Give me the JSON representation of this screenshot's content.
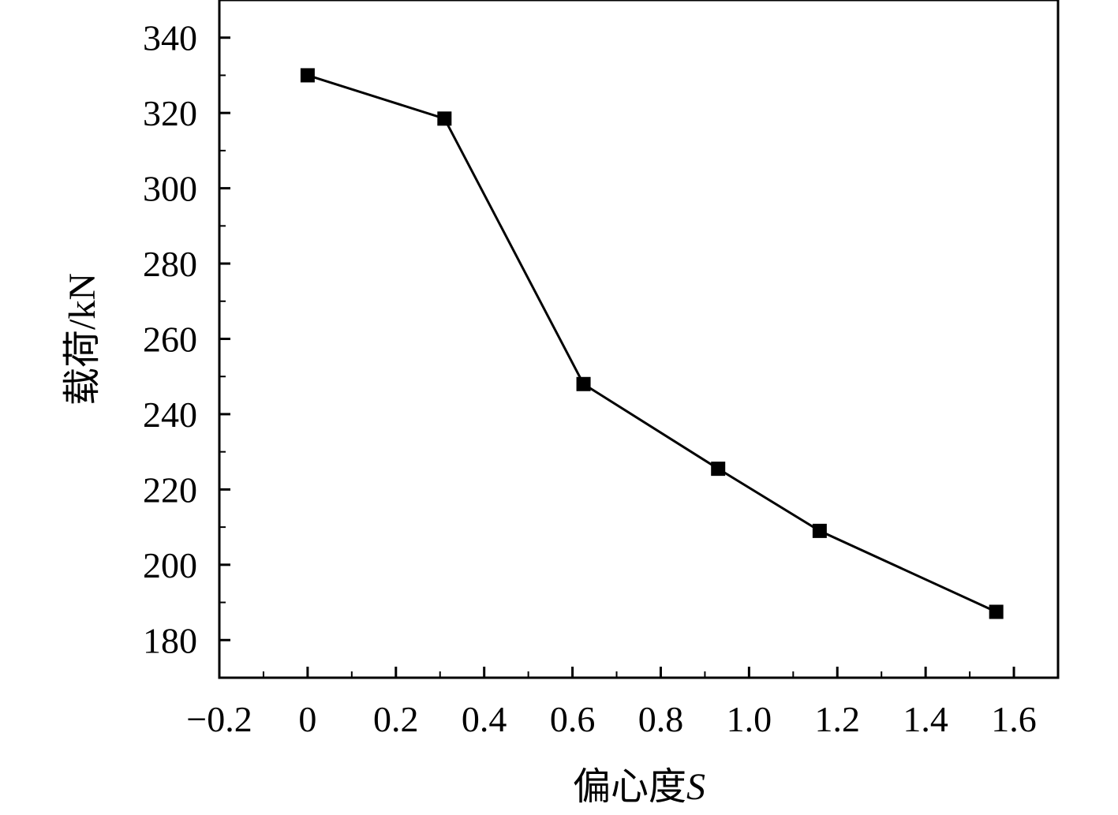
{
  "chart_data": {
    "type": "line",
    "title": "",
    "xlabel": "偏心度",
    "xlabel_var": "S",
    "ylabel": "载荷/kN",
    "xlim": [
      -0.2,
      1.7
    ],
    "ylim": [
      170,
      350
    ],
    "xticks": [
      -0.2,
      0,
      0.2,
      0.4,
      0.6,
      0.8,
      1.0,
      1.2,
      1.4,
      1.6
    ],
    "xtick_labels": [
      "−0.2",
      "0",
      "0.2",
      "0.4",
      "0.6",
      "0.8",
      "1.0",
      "1.2",
      "1.4",
      "1.6"
    ],
    "yticks": [
      180,
      200,
      220,
      240,
      260,
      280,
      300,
      320,
      340
    ],
    "ytick_labels": [
      "180",
      "200",
      "220",
      "240",
      "260",
      "280",
      "300",
      "320",
      "340"
    ],
    "grid": false,
    "marker": "square",
    "color": "#000000",
    "series": [
      {
        "x": [
          0,
          0.31,
          0.625,
          0.93,
          1.16,
          1.56
        ],
        "y": [
          330,
          318.5,
          248,
          225.5,
          209,
          187.5
        ]
      }
    ]
  }
}
